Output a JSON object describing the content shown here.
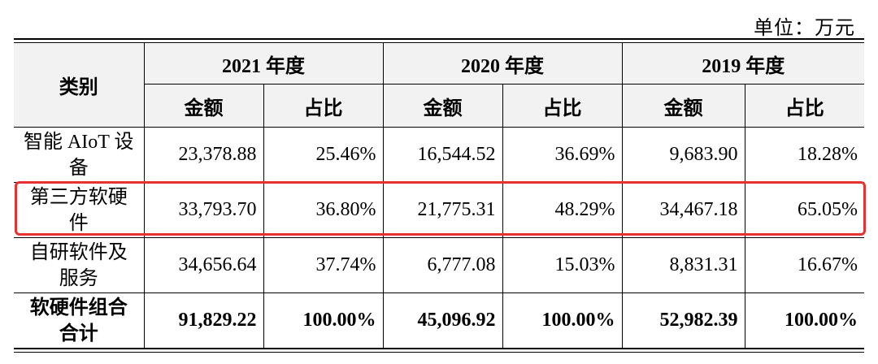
{
  "unit_label": "单位：万元",
  "header": {
    "category": "类别",
    "years": [
      "2021 年度",
      "2020 年度",
      "2019 年度"
    ],
    "amount": "金额",
    "ratio": "占比"
  },
  "rows": [
    {
      "category": "智能 AIoT 设备",
      "values": [
        "23,378.88",
        "25.46%",
        "16,544.52",
        "36.69%",
        "9,683.90",
        "18.28%"
      ]
    },
    {
      "category": "第三方软硬件",
      "values": [
        "33,793.70",
        "36.80%",
        "21,775.31",
        "48.29%",
        "34,467.18",
        "65.05%"
      ]
    },
    {
      "category": "自研软件及服务",
      "values": [
        "34,656.64",
        "37.74%",
        "6,777.08",
        "15.03%",
        "8,831.31",
        "16.67%"
      ]
    },
    {
      "category": "软硬件组合合计",
      "values": [
        "91,829.22",
        "100.00%",
        "45,096.92",
        "100.00%",
        "52,982.39",
        "100.00%"
      ]
    }
  ],
  "highlight_color": "#e8322f"
}
